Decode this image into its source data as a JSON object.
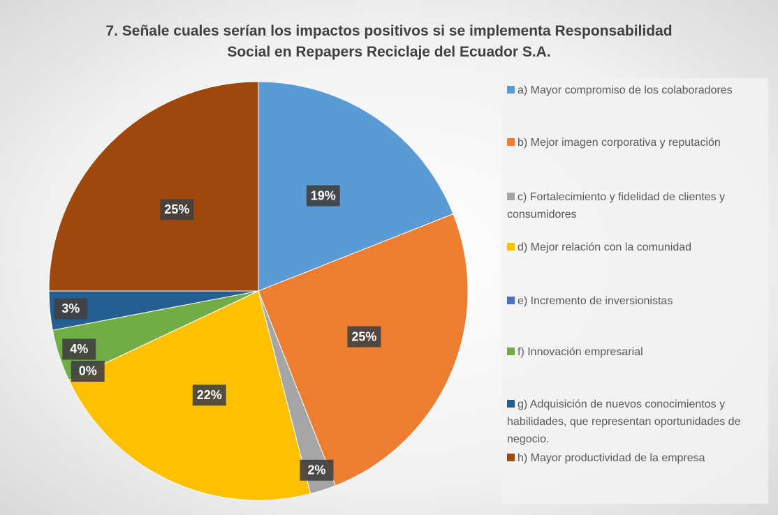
{
  "chart_data": {
    "type": "pie",
    "title": "7. Señale cuales serían los impactos positivos si se implementa Responsabilidad Social en Repapers Reciclaje del Ecuador S.A.",
    "categories": [
      "a) Mayor compromiso de los colaboradores",
      "b) Mejor imagen corporativa y reputación",
      "c) Fortalecimiento y fidelidad de clientes y consumidores",
      "d) Mejor relación con la comunidad",
      "e) Incremento de inversionistas",
      "f) Innovación empresarial",
      "g) Adquisición de nuevos conocimientos y habilidades, que representan oportunidades de negocio.",
      "h) Mayor productividad de la empresa"
    ],
    "values": [
      19,
      25,
      2,
      22,
      0,
      4,
      3,
      25
    ],
    "value_labels": [
      "19%",
      "25%",
      "2%",
      "22%",
      "0%",
      "4%",
      "3%",
      "25%"
    ],
    "colors": [
      "#5b9bd5",
      "#ed7d31",
      "#a5a5a5",
      "#ffc000",
      "#4472c4",
      "#70ad47",
      "#255e91",
      "#9e480e"
    ],
    "legend": "right"
  }
}
